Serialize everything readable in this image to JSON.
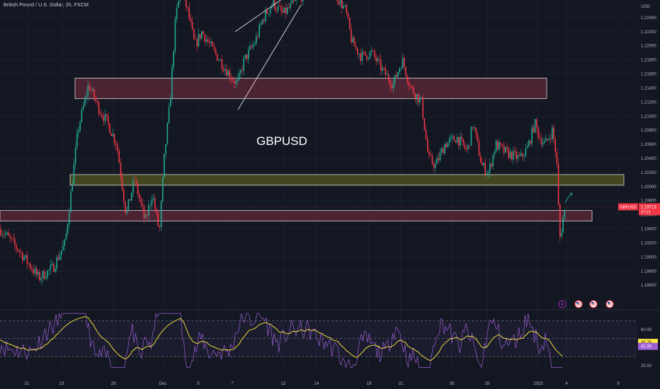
{
  "header": {
    "symbol_description": "British Pound / U.S. Dollar, 2h, FXCM"
  },
  "chart_data": {
    "type": "candlestick",
    "title": "GBPUSD",
    "currency": "USD",
    "price_axis": {
      "ylim": [
        1.1825,
        1.2265
      ],
      "ticks": [
        "1.22400",
        "1.22200",
        "1.22000",
        "1.21800",
        "1.21600",
        "1.21400",
        "1.21200",
        "1.21000",
        "1.20800",
        "1.20600",
        "1.20400",
        "1.20200",
        "1.20000",
        "1.19800",
        "1.19600",
        "1.19400",
        "1.19200",
        "1.19000",
        "1.18800",
        "1.18600"
      ]
    },
    "time_axis": {
      "labels": [
        "21",
        "23",
        "28",
        "Dec",
        "5",
        "7",
        "12",
        "14",
        "19",
        "21",
        "26",
        "28",
        "2023",
        "4",
        "9"
      ]
    },
    "last_price": {
      "symbol": "GBPUSD",
      "value": "1.19713",
      "countdown": "37:21",
      "price": 1.19713
    },
    "zones": [
      {
        "kind": "resistance",
        "color": "#7b2d3f",
        "from": 1.2125,
        "to": 1.2154
      },
      {
        "kind": "support",
        "color": "#6b6b1e",
        "from": 1.2002,
        "to": 1.2017
      },
      {
        "kind": "support",
        "color": "#7b2d3f",
        "from": 1.1951,
        "to": 1.1966
      }
    ],
    "series": [
      {
        "type": "candlestick",
        "up_color": "#22ab94",
        "down_color": "#f23645",
        "path": [
          [
            0,
            1.194
          ],
          [
            14,
            1.1925
          ],
          [
            30,
            1.1905
          ],
          [
            55,
            1.187
          ],
          [
            75,
            1.1885
          ],
          [
            92,
            1.192
          ],
          [
            100,
            1.199
          ],
          [
            110,
            1.208
          ],
          [
            125,
            1.2145
          ],
          [
            140,
            1.211
          ],
          [
            152,
            1.209
          ],
          [
            165,
            1.206
          ],
          [
            178,
            1.196
          ],
          [
            190,
            1.201
          ],
          [
            205,
            1.195
          ],
          [
            215,
            1.199
          ],
          [
            225,
            1.1935
          ],
          [
            232,
            1.204
          ],
          [
            240,
            1.212
          ],
          [
            248,
            1.224
          ],
          [
            255,
            1.228
          ],
          [
            265,
            1.225
          ],
          [
            275,
            1.22
          ],
          [
            285,
            1.222
          ],
          [
            300,
            1.2195
          ],
          [
            320,
            1.2165
          ],
          [
            335,
            1.2145
          ],
          [
            345,
            1.218
          ],
          [
            360,
            1.2205
          ],
          [
            372,
            1.224
          ],
          [
            385,
            1.226
          ],
          [
            400,
            1.2245
          ],
          [
            415,
            1.226
          ],
          [
            430,
            1.2275
          ],
          [
            445,
            1.229
          ],
          [
            470,
            1.228
          ],
          [
            488,
            1.225
          ],
          [
            497,
            1.2205
          ],
          [
            510,
            1.2185
          ],
          [
            525,
            1.219
          ],
          [
            540,
            1.2165
          ],
          [
            555,
            1.2145
          ],
          [
            568,
            1.218
          ],
          [
            580,
            1.214
          ],
          [
            595,
            1.212
          ],
          [
            605,
            1.204
          ],
          [
            615,
            1.203
          ],
          [
            628,
            1.206
          ],
          [
            645,
            1.207
          ],
          [
            660,
            1.205
          ],
          [
            668,
            1.209
          ],
          [
            680,
            1.203
          ],
          [
            690,
            1.202
          ],
          [
            700,
            1.206
          ],
          [
            712,
            1.205
          ],
          [
            722,
            1.2045
          ],
          [
            735,
            1.204
          ],
          [
            745,
            1.2055
          ],
          [
            755,
            1.209
          ],
          [
            762,
            1.207
          ],
          [
            770,
            1.206
          ],
          [
            780,
            1.208
          ],
          [
            786,
            1.204
          ],
          [
            789,
            1.196
          ],
          [
            791,
            1.1925
          ],
          [
            795,
            1.1955
          ],
          [
            799,
            1.1971
          ]
        ]
      }
    ],
    "annotations": {
      "trendlines": [
        {
          "from": [
            336,
            1.2109
          ],
          "to": [
            425,
            1.2258
          ]
        },
        {
          "from": [
            332,
            1.222
          ],
          "to": [
            425,
            1.2285
          ]
        }
      ],
      "arrow": {
        "from": [
          798,
          1.1977
        ],
        "to": [
          808,
          1.199
        ]
      }
    },
    "indicators": {
      "rsi": {
        "ylim": [
          16,
          82
        ],
        "ticks": [
          "60.00",
          "20.00"
        ],
        "levels": [
          70,
          50,
          30
        ],
        "ma_value": "45.76",
        "rsi_value": "41.35",
        "ma_color": "#ffeb3b",
        "rsi_color": "#9c5fd6"
      }
    },
    "event_markers": [
      "lightning-icon",
      "us-flag-icon",
      "us-flag-icon",
      "us-flag-icon"
    ]
  }
}
